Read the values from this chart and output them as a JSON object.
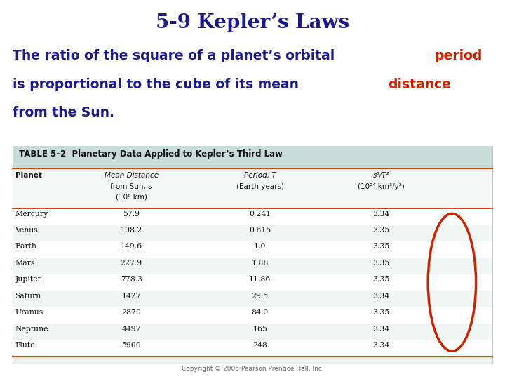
{
  "title": "5-9 Kepler’s Laws",
  "title_color": "#1a1a8c",
  "table_title": "TABLE 5–2  Planetary Data Applied to Kepler’s Third Law",
  "col_headers_line1": [
    "",
    "Mean Distance",
    "Period, T",
    "s³/T²"
  ],
  "col_headers_line2": [
    "",
    "from Sun, s",
    "(Earth years)",
    "(10²⁴ km³/y²)"
  ],
  "col_headers_line3": [
    "Planet",
    "(10⁶ km)",
    "",
    ""
  ],
  "planets": [
    "Mercury",
    "Venus",
    "Earth",
    "Mars",
    "Jupiter",
    "Saturn",
    "Uranus",
    "Neptune",
    "Pluto"
  ],
  "distances": [
    "57.9",
    "108.2",
    "149.6",
    "227.9",
    "778.3",
    "1427",
    "2870",
    "4497",
    "5900"
  ],
  "periods": [
    "0.241",
    "0.615",
    "1.0",
    "1.88",
    "11.86",
    "29.5",
    "84.0",
    "165",
    "248"
  ],
  "ratios": [
    "3.34",
    "3.35",
    "3.35",
    "3.35",
    "3.35",
    "3.34",
    "3.35",
    "3.34",
    "3.34"
  ],
  "bg_color": "#ffffff",
  "table_bg": "#e8f0ee",
  "table_header_bg": "#c8dcd8",
  "table_border_color": "#cc3300",
  "ellipse_color": "#cc2200",
  "subtitle_blue": "#1a1a8c",
  "subtitle_red": "#cc2200",
  "copyright": "Copyright © 2005 Pearson Prentice Hall, Inc."
}
